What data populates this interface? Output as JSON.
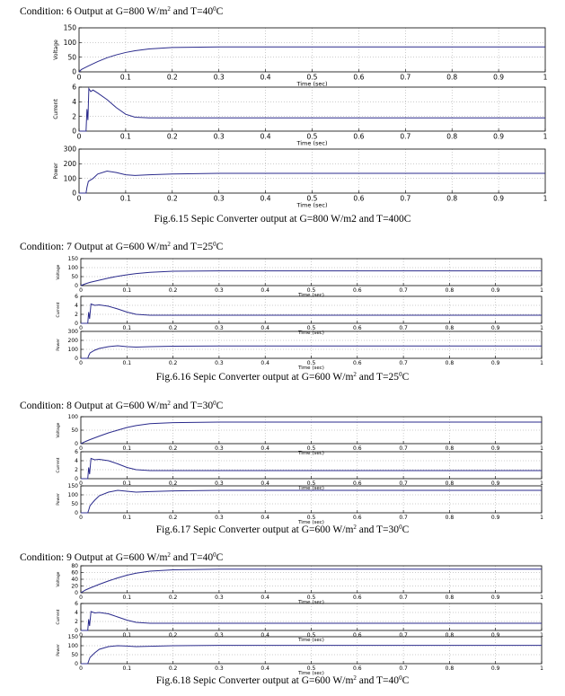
{
  "sections": [
    {
      "condition": {
        "pre": "Condition: 6 Output at G=800 W/m",
        "sup1": "2",
        "mid": " and T=40",
        "sup2": "0",
        "post": "C"
      },
      "caption": {
        "pre": "Fig.6.15 Sepic Converter output at G=800 W/m2 and T=400C",
        "sup1": "",
        "mid": "",
        "sup2": "",
        "post": ""
      }
    },
    {
      "condition": {
        "pre": "Condition: 7 Output at G=600 W/m",
        "sup1": "2",
        "mid": " and T=25",
        "sup2": "0",
        "post": "C"
      },
      "caption": {
        "pre": "Fig.6.16 Sepic Converter output at G=600 W/m",
        "sup1": "2",
        "mid": " and T=25",
        "sup2": "0",
        "post": "C"
      }
    },
    {
      "condition": {
        "pre": "Condition: 8 Output at G=600 W/m",
        "sup1": "2",
        "mid": " and T=30",
        "sup2": "0",
        "post": "C"
      },
      "caption": {
        "pre": "Fig.6.17 Sepic Converter output at G=600 W/m",
        "sup1": "2",
        "mid": " and T=30",
        "sup2": "0",
        "post": "C"
      }
    },
    {
      "condition": {
        "pre": "Condition: 9 Output at G=600 W/m",
        "sup1": "2",
        "mid": " and T=40",
        "sup2": "0",
        "post": "C"
      },
      "caption": {
        "pre": "Fig.6.18 Sepic Converter output at G=600 W/m",
        "sup1": "2",
        "mid": " and T=40",
        "sup2": "0",
        "post": "C"
      }
    }
  ],
  "line_color": "#2b2b8c",
  "chart_data": [
    {
      "type": "line",
      "ylabel": "Voltage",
      "xlabel": "Time (sec)",
      "xlim": [
        0,
        1
      ],
      "ylim": [
        0,
        150
      ],
      "yticks": [
        0,
        50,
        100,
        150
      ],
      "xticks": [
        "0",
        "0.1",
        "0.2",
        "0.3",
        "0.4",
        "0.5",
        "0.6",
        "0.7",
        "0.8",
        "0.9",
        "1"
      ],
      "grid": "dotted",
      "series": [
        {
          "x": [
            0,
            0.005,
            0.01,
            0.02,
            0.04,
            0.06,
            0.08,
            0.1,
            0.12,
            0.15,
            0.2,
            0.3,
            0.5,
            0.7,
            1.0
          ],
          "y": [
            0,
            8,
            12,
            20,
            35,
            48,
            58,
            66,
            72,
            78,
            83,
            85,
            85,
            85,
            85
          ]
        }
      ]
    },
    {
      "type": "line",
      "ylabel": "Current",
      "xlabel": "Time (sec)",
      "xlim": [
        0,
        1
      ],
      "ylim": [
        0,
        6
      ],
      "yticks": [
        0,
        2,
        4,
        6
      ],
      "xticks": [
        "0",
        "0.1",
        "0.2",
        "0.3",
        "0.4",
        "0.5",
        "0.6",
        "0.7",
        "0.8",
        "0.9",
        "1"
      ],
      "grid": "dotted",
      "series": [
        {
          "x": [
            0,
            0.015,
            0.017,
            0.019,
            0.021,
            0.025,
            0.03,
            0.04,
            0.06,
            0.08,
            0.1,
            0.12,
            0.15,
            0.2,
            1.0
          ],
          "y": [
            0,
            0,
            3,
            1.5,
            5.8,
            5.4,
            5.6,
            5.2,
            4.3,
            3.2,
            2.3,
            1.9,
            1.8,
            1.8,
            1.8
          ]
        }
      ]
    },
    {
      "type": "line",
      "ylabel": "Power",
      "xlabel": "Time (sec)",
      "xlim": [
        0,
        1
      ],
      "ylim": [
        0,
        300
      ],
      "yticks": [
        0,
        100,
        200,
        300
      ],
      "xticks": [
        "0",
        "0.1",
        "0.2",
        "0.3",
        "0.4",
        "0.5",
        "0.6",
        "0.7",
        "0.8",
        "0.9",
        "1"
      ],
      "grid": "dotted",
      "series": [
        {
          "x": [
            0,
            0.015,
            0.017,
            0.02,
            0.03,
            0.04,
            0.06,
            0.08,
            0.1,
            0.12,
            0.15,
            0.2,
            0.3,
            1.0
          ],
          "y": [
            0,
            0,
            40,
            80,
            100,
            130,
            150,
            140,
            125,
            120,
            125,
            130,
            135,
            135
          ]
        }
      ]
    },
    {
      "type": "line",
      "ylabel": "Voltage",
      "xlabel": "Time (sec)",
      "xlim": [
        0,
        1
      ],
      "ylim": [
        0,
        150
      ],
      "yticks": [
        0,
        50,
        100,
        150
      ],
      "xticks": [
        "0",
        "0.1",
        "0.2",
        "0.3",
        "0.4",
        "0.5",
        "0.6",
        "0.7",
        "0.8",
        "0.9",
        "1"
      ],
      "grid": "dotted",
      "series": [
        {
          "x": [
            0,
            0.005,
            0.01,
            0.02,
            0.04,
            0.06,
            0.08,
            0.1,
            0.12,
            0.15,
            0.2,
            0.3,
            0.5,
            1.0
          ],
          "y": [
            0,
            5,
            10,
            18,
            30,
            42,
            52,
            60,
            67,
            74,
            80,
            82,
            82,
            82
          ]
        }
      ]
    },
    {
      "type": "line",
      "ylabel": "Current",
      "xlabel": "Time (sec)",
      "xlim": [
        0,
        1
      ],
      "ylim": [
        0,
        6
      ],
      "yticks": [
        0,
        2,
        4,
        6
      ],
      "xticks": [
        "0",
        "0.1",
        "0.2",
        "0.3",
        "0.4",
        "0.5",
        "0.6",
        "0.7",
        "0.8",
        "0.9",
        "1"
      ],
      "grid": "dotted",
      "series": [
        {
          "x": [
            0,
            0.015,
            0.017,
            0.019,
            0.022,
            0.03,
            0.04,
            0.06,
            0.08,
            0.1,
            0.12,
            0.15,
            0.2,
            1.0
          ],
          "y": [
            0,
            0,
            2.5,
            1,
            4.3,
            4.0,
            4.1,
            3.8,
            3.2,
            2.5,
            2.0,
            1.8,
            1.8,
            1.8
          ]
        }
      ]
    },
    {
      "type": "line",
      "ylabel": "Power",
      "xlabel": "Time (sec)",
      "xlim": [
        0,
        1
      ],
      "ylim": [
        0,
        300
      ],
      "yticks": [
        0,
        100,
        200,
        300
      ],
      "xticks": [
        "0",
        "0.1",
        "0.2",
        "0.3",
        "0.4",
        "0.5",
        "0.6",
        "0.7",
        "0.8",
        "0.9",
        "1"
      ],
      "grid": "dotted",
      "series": [
        {
          "x": [
            0,
            0.015,
            0.017,
            0.02,
            0.03,
            0.04,
            0.06,
            0.08,
            0.1,
            0.12,
            0.15,
            0.2,
            0.3,
            1.0
          ],
          "y": [
            0,
            0,
            30,
            60,
            90,
            110,
            130,
            140,
            130,
            125,
            130,
            135,
            138,
            138
          ]
        }
      ]
    },
    {
      "type": "line",
      "ylabel": "Voltage",
      "xlabel": "Time (sec)",
      "xlim": [
        0,
        1
      ],
      "ylim": [
        0,
        100
      ],
      "yticks": [
        0,
        50,
        100
      ],
      "xticks": [
        "0",
        "0.1",
        "0.2",
        "0.3",
        "0.4",
        "0.5",
        "0.6",
        "0.7",
        "0.8",
        "0.9",
        "1"
      ],
      "grid": "dotted",
      "series": [
        {
          "x": [
            0,
            0.005,
            0.01,
            0.02,
            0.04,
            0.06,
            0.08,
            0.1,
            0.12,
            0.15,
            0.2,
            0.3,
            0.5,
            1.0
          ],
          "y": [
            0,
            4,
            8,
            15,
            28,
            40,
            50,
            60,
            67,
            74,
            78,
            80,
            80,
            80
          ]
        }
      ]
    },
    {
      "type": "line",
      "ylabel": "Current",
      "xlabel": "Time (sec)",
      "xlim": [
        0,
        1
      ],
      "ylim": [
        0,
        6
      ],
      "yticks": [
        0,
        2,
        4,
        6
      ],
      "xticks": [
        "0",
        "0.1",
        "0.2",
        "0.3",
        "0.4",
        "0.5",
        "0.6",
        "0.7",
        "0.8",
        "0.9",
        "1"
      ],
      "grid": "dotted",
      "series": [
        {
          "x": [
            0,
            0.015,
            0.017,
            0.019,
            0.022,
            0.03,
            0.04,
            0.06,
            0.08,
            0.1,
            0.12,
            0.15,
            0.2,
            1.0
          ],
          "y": [
            0,
            0,
            2.5,
            1,
            4.5,
            4.2,
            4.3,
            4.0,
            3.3,
            2.5,
            2.0,
            1.8,
            1.8,
            1.8
          ]
        }
      ]
    },
    {
      "type": "line",
      "ylabel": "Power",
      "xlabel": "Time (sec)",
      "xlim": [
        0,
        1
      ],
      "ylim": [
        0,
        150
      ],
      "yticks": [
        0,
        50,
        100,
        150
      ],
      "xticks": [
        "0",
        "0.1",
        "0.2",
        "0.3",
        "0.4",
        "0.5",
        "0.6",
        "0.7",
        "0.8",
        "0.9",
        "1"
      ],
      "grid": "dotted",
      "series": [
        {
          "x": [
            0,
            0.015,
            0.017,
            0.02,
            0.03,
            0.04,
            0.06,
            0.08,
            0.1,
            0.12,
            0.15,
            0.2,
            0.3,
            1.0
          ],
          "y": [
            0,
            0,
            15,
            40,
            70,
            95,
            115,
            125,
            120,
            115,
            118,
            122,
            125,
            125
          ]
        }
      ]
    },
    {
      "type": "line",
      "ylabel": "Voltage",
      "xlabel": "Time (sec)",
      "xlim": [
        0,
        1
      ],
      "ylim": [
        0,
        80
      ],
      "yticks": [
        0,
        20,
        40,
        60,
        80
      ],
      "xticks": [
        "0",
        "0.1",
        "0.2",
        "0.3",
        "0.4",
        "0.5",
        "0.6",
        "0.7",
        "0.8",
        "0.9",
        "1"
      ],
      "grid": "dotted",
      "series": [
        {
          "x": [
            0,
            0.005,
            0.01,
            0.02,
            0.04,
            0.06,
            0.08,
            0.1,
            0.12,
            0.15,
            0.2,
            0.3,
            0.5,
            1.0
          ],
          "y": [
            0,
            4,
            8,
            14,
            25,
            35,
            44,
            52,
            58,
            64,
            68,
            70,
            70,
            70
          ]
        }
      ]
    },
    {
      "type": "line",
      "ylabel": "Current",
      "xlabel": "Time (sec)",
      "xlim": [
        0,
        1
      ],
      "ylim": [
        0,
        6
      ],
      "yticks": [
        0,
        2,
        4,
        6
      ],
      "xticks": [
        "0",
        "0.1",
        "0.2",
        "0.3",
        "0.4",
        "0.5",
        "0.6",
        "0.7",
        "0.8",
        "0.9",
        "1"
      ],
      "grid": "dotted",
      "series": [
        {
          "x": [
            0,
            0.015,
            0.017,
            0.019,
            0.022,
            0.03,
            0.04,
            0.06,
            0.08,
            0.1,
            0.12,
            0.15,
            0.2,
            1.0
          ],
          "y": [
            0,
            0,
            2.5,
            1,
            4.2,
            3.9,
            4.0,
            3.7,
            3.0,
            2.3,
            1.8,
            1.6,
            1.6,
            1.6
          ]
        }
      ]
    },
    {
      "type": "line",
      "ylabel": "Power",
      "xlabel": "Time (sec)",
      "xlim": [
        0,
        1
      ],
      "ylim": [
        0,
        150
      ],
      "yticks": [
        0,
        50,
        100,
        150
      ],
      "xticks": [
        "0",
        "0.1",
        "0.2",
        "0.3",
        "0.4",
        "0.5",
        "0.6",
        "0.7",
        "0.8",
        "0.9",
        "1"
      ],
      "grid": "dotted",
      "series": [
        {
          "x": [
            0,
            0.015,
            0.017,
            0.02,
            0.03,
            0.04,
            0.06,
            0.08,
            0.1,
            0.12,
            0.15,
            0.2,
            0.3,
            1.0
          ],
          "y": [
            0,
            0,
            15,
            35,
            60,
            80,
            95,
            100,
            98,
            95,
            97,
            100,
            102,
            102
          ]
        }
      ]
    }
  ]
}
